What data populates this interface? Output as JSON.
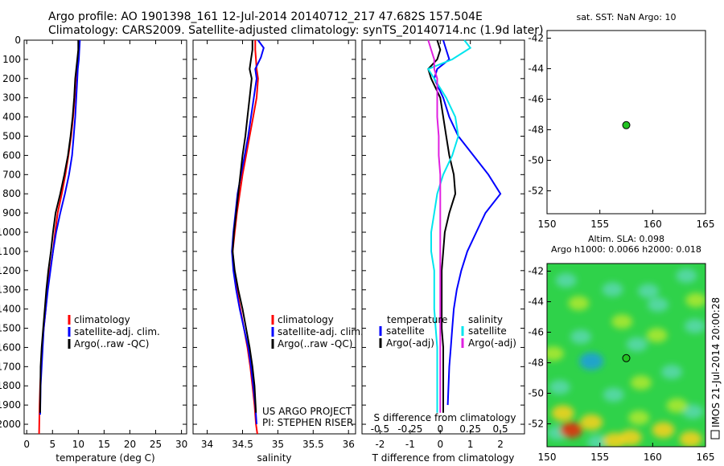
{
  "header": {
    "line1": "Argo profile: AO 1901398_161 12-Jul-2014 20140712_217 47.682S 157.504E",
    "line2": "Climatology: CARS2009. Satellite-adjusted climatology: synTS_20140714.nc (1.9d later)"
  },
  "side_label": "IMOS 21-Jul-2014 20:00:28",
  "colors": {
    "climatology": "#ff0000",
    "satellite": "#0000ff",
    "argo": "#000000",
    "sal_satellite": "#00e5ee",
    "sal_argo": "#e020e0",
    "dot": "#22c322",
    "axis": "#000000"
  },
  "chart_data": [
    {
      "id": "temperature",
      "type": "line",
      "xlabel": "temperature (deg C)",
      "xlim": [
        -0.5,
        31
      ],
      "ylim": [
        0,
        2050
      ],
      "xticks": [
        0,
        5,
        10,
        15,
        20,
        25,
        30
      ],
      "yticks": [
        0,
        100,
        200,
        300,
        400,
        500,
        600,
        700,
        800,
        900,
        1000,
        1100,
        1200,
        1300,
        1400,
        1500,
        1600,
        1700,
        1800,
        1900,
        2000
      ],
      "legend": [
        "climatology",
        "satellite-adj. clim.",
        "Argo(..raw -QC)"
      ],
      "series": [
        {
          "name": "climatology",
          "color": "#ff0000",
          "x": [
            10.1,
            10.1,
            9.9,
            9.7,
            9.5,
            9.3,
            9.0,
            8.6,
            8.1,
            7.5,
            6.8,
            6.0,
            5.5,
            5.1,
            4.5,
            4.0,
            3.7,
            3.3,
            3.0,
            2.8,
            2.6,
            2.5,
            2.4
          ],
          "y": [
            0,
            50,
            100,
            150,
            200,
            300,
            400,
            500,
            600,
            700,
            800,
            900,
            1000,
            1100,
            1200,
            1300,
            1400,
            1500,
            1600,
            1700,
            1800,
            1900,
            2050
          ]
        },
        {
          "name": "satellite-adj. clim.",
          "color": "#0000ff",
          "x": [
            10.3,
            10.2,
            10.1,
            9.9,
            9.8,
            9.6,
            9.4,
            9.1,
            8.8,
            8.2,
            7.4,
            6.5,
            5.7,
            5.1,
            4.6,
            4.1,
            3.7,
            3.3,
            3.1,
            2.9,
            2.7,
            2.6
          ],
          "y": [
            0,
            50,
            100,
            150,
            200,
            300,
            400,
            500,
            600,
            700,
            800,
            900,
            1000,
            1100,
            1200,
            1300,
            1400,
            1500,
            1600,
            1700,
            1800,
            1950
          ]
        },
        {
          "name": "Argo(..raw -QC)",
          "color": "#000000",
          "x": [
            10.0,
            10.0,
            9.8,
            9.6,
            9.4,
            9.2,
            8.9,
            8.5,
            8.0,
            7.3,
            6.5,
            5.6,
            5.1,
            4.7,
            4.2,
            3.8,
            3.5,
            3.2,
            2.9,
            2.7,
            2.6
          ],
          "y": [
            0,
            50,
            100,
            150,
            200,
            300,
            400,
            500,
            600,
            700,
            800,
            900,
            1000,
            1100,
            1200,
            1300,
            1400,
            1500,
            1600,
            1700,
            1940
          ]
        }
      ]
    },
    {
      "id": "salinity",
      "type": "line",
      "xlabel": "salinity",
      "xlim": [
        33.8,
        36.1
      ],
      "ylim": [
        0,
        2050
      ],
      "xticks": [
        34,
        34.5,
        35,
        35.5,
        36
      ],
      "xtick_labels": [
        "34",
        "34.5",
        "35",
        "35.5",
        "36"
      ],
      "legend": [
        "climatology",
        "satellite-adj. clim.",
        "Argo(..raw -QC)"
      ],
      "annotation": [
        "US ARGO PROJECT",
        "PI: STEPHEN RISER"
      ],
      "series": [
        {
          "name": "climatology",
          "color": "#ff0000",
          "x": [
            34.68,
            34.68,
            34.69,
            34.7,
            34.72,
            34.7,
            34.65,
            34.6,
            34.55,
            34.5,
            34.46,
            34.42,
            34.39,
            34.36,
            34.38,
            34.42,
            34.47,
            34.52,
            34.57,
            34.61,
            34.64,
            34.67,
            34.69,
            34.71
          ],
          "y": [
            0,
            50,
            100,
            150,
            200,
            300,
            400,
            500,
            600,
            700,
            800,
            900,
            1000,
            1100,
            1200,
            1300,
            1400,
            1500,
            1600,
            1700,
            1800,
            1900,
            2000,
            2050
          ]
        },
        {
          "name": "satellite-adj. clim.",
          "color": "#0000ff",
          "x": [
            34.72,
            34.8,
            34.76,
            34.68,
            34.7,
            34.66,
            34.62,
            34.58,
            34.53,
            34.48,
            34.43,
            34.4,
            34.37,
            34.35,
            34.37,
            34.41,
            34.46,
            34.52,
            34.58,
            34.62,
            34.65,
            34.68,
            34.7
          ],
          "y": [
            0,
            40,
            90,
            150,
            200,
            300,
            400,
            500,
            600,
            700,
            800,
            900,
            1000,
            1100,
            1200,
            1300,
            1400,
            1500,
            1600,
            1700,
            1800,
            1900,
            2000
          ]
        },
        {
          "name": "Argo(..raw -QC)",
          "color": "#000000",
          "x": [
            34.64,
            34.64,
            34.62,
            34.6,
            34.63,
            34.6,
            34.57,
            34.54,
            34.5,
            34.47,
            34.44,
            34.41,
            34.38,
            34.36,
            34.39,
            34.44,
            34.5,
            34.55,
            34.6,
            34.64,
            34.67,
            34.69
          ],
          "y": [
            0,
            50,
            100,
            150,
            200,
            300,
            400,
            500,
            600,
            700,
            800,
            900,
            1000,
            1100,
            1200,
            1300,
            1400,
            1500,
            1600,
            1700,
            1800,
            1940
          ]
        }
      ]
    },
    {
      "id": "difference",
      "type": "line",
      "xlabel": "T difference from climatology",
      "xlabel_top": "S difference from climatology",
      "xlim": [
        -2.6,
        2.8
      ],
      "ylim": [
        0,
        2050
      ],
      "xticks": [
        -2,
        -1,
        0,
        1,
        2
      ],
      "s_ticks": [
        -0.5,
        -0.25,
        0,
        0.25,
        0.5
      ],
      "s_tick_labels": [
        "-0.5",
        "-0.25",
        "0",
        "0.25",
        "0.5"
      ],
      "s_scale": 4,
      "legend_headers": [
        "temperature",
        "salinity"
      ],
      "legend": [
        "satellite",
        "Argo(-adj)",
        "satellite",
        "Argo(-adj)"
      ],
      "series": [
        {
          "name": "T satellite",
          "color": "#0000ff",
          "x": [
            0.1,
            0.2,
            0.3,
            -0.1,
            -0.2,
            0.1,
            0.3,
            0.6,
            1.1,
            1.6,
            2.0,
            1.5,
            1.2,
            0.9,
            0.7,
            0.55,
            0.45,
            0.4,
            0.35,
            0.3,
            0.25
          ],
          "y": [
            0,
            50,
            100,
            150,
            200,
            300,
            400,
            500,
            600,
            700,
            800,
            900,
            1000,
            1100,
            1200,
            1300,
            1400,
            1500,
            1600,
            1700,
            1900
          ]
        },
        {
          "name": "T Argo(-adj)",
          "color": "#000000",
          "x": [
            -0.1,
            0.0,
            -0.1,
            -0.4,
            -0.3,
            0.0,
            0.1,
            0.2,
            0.3,
            0.45,
            0.5,
            0.3,
            0.15,
            0.1,
            0.05,
            0.05,
            0.05,
            0.05,
            0.1,
            0.1,
            0.1
          ],
          "y": [
            0,
            50,
            100,
            150,
            200,
            300,
            400,
            500,
            600,
            700,
            800,
            900,
            1000,
            1100,
            1200,
            1300,
            1400,
            1500,
            1600,
            1700,
            1940
          ]
        },
        {
          "name": "S satellite",
          "color": "#00e5ee",
          "x": [
            0.8,
            1.0,
            0.4,
            -0.4,
            -0.2,
            0.2,
            0.5,
            0.6,
            0.4,
            0.1,
            -0.1,
            -0.2,
            -0.3,
            -0.3,
            -0.2,
            -0.2,
            -0.2,
            -0.15,
            -0.1,
            -0.1,
            -0.1
          ],
          "y": [
            0,
            40,
            100,
            150,
            200,
            300,
            400,
            500,
            600,
            700,
            800,
            900,
            1000,
            1100,
            1200,
            1300,
            1400,
            1500,
            1600,
            1700,
            1940
          ]
        },
        {
          "name": "S Argo(-adj)",
          "color": "#e020e0",
          "x": [
            -0.4,
            -0.3,
            -0.2,
            -0.2,
            -0.1,
            -0.1,
            -0.1,
            -0.05,
            -0.05,
            0.0,
            0.0,
            0.0,
            0.0,
            0.0,
            0.0,
            0.0,
            0.0,
            0.0,
            0.0,
            0.0,
            0.0
          ],
          "y": [
            0,
            50,
            100,
            150,
            200,
            300,
            400,
            500,
            600,
            700,
            800,
            900,
            1000,
            1100,
            1200,
            1300,
            1400,
            1500,
            1600,
            1700,
            1940
          ]
        }
      ]
    },
    {
      "id": "map-sst",
      "type": "scatter",
      "title": "sat. SST: NaN Argo: 10",
      "xlim": [
        150,
        165
      ],
      "ylim": [
        -53.5,
        -41.5
      ],
      "xticks": [
        150,
        155,
        160,
        165
      ],
      "yticks": [
        -42,
        -44,
        -46,
        -48,
        -50,
        -52
      ],
      "points": [
        {
          "x": 157.5,
          "y": -47.7
        }
      ]
    },
    {
      "id": "map-sla",
      "type": "heatmap",
      "title_lines": [
        "Altim. SLA: 0.098",
        "Argo h1000: 0.0066 h2000: 0.018"
      ],
      "xlim": [
        150,
        165
      ],
      "ylim": [
        -53.5,
        -41.5
      ],
      "xticks": [
        150,
        155,
        160,
        165
      ],
      "yticks": [
        -42,
        -44,
        -46,
        -48,
        -50,
        -52
      ],
      "points": [
        {
          "x": 157.5,
          "y": -47.7
        }
      ],
      "features": [
        {
          "x": 151.8,
          "y": -42.6,
          "value": 0.8
        },
        {
          "x": 156.2,
          "y": -43.2,
          "value": 0.7
        },
        {
          "x": 160.5,
          "y": -44.2,
          "value": 0.8
        },
        {
          "x": 163.2,
          "y": -42.3,
          "value": 0.75
        },
        {
          "x": 153.2,
          "y": -46.3,
          "value": 0.75
        },
        {
          "x": 158.5,
          "y": -46.8,
          "value": 0.7
        },
        {
          "x": 161.8,
          "y": -48.6,
          "value": 0.8
        },
        {
          "x": 151.2,
          "y": -49.6,
          "value": 0.75
        },
        {
          "x": 156.3,
          "y": -50.1,
          "value": 0.7
        },
        {
          "x": 163.8,
          "y": -51.2,
          "value": 0.8
        },
        {
          "x": 158.7,
          "y": -51.6,
          "value": 1.0
        },
        {
          "x": 151.0,
          "y": -52.6,
          "value": 0.85
        },
        {
          "x": 154.8,
          "y": -53.2,
          "value": 0.8
        },
        {
          "x": 154.2,
          "y": -47.9,
          "value": 0.55
        },
        {
          "x": 164.0,
          "y": -45.6,
          "value": 0.6
        },
        {
          "x": 159.6,
          "y": -43.3,
          "value": 0.6
        },
        {
          "x": 151.5,
          "y": -51.3,
          "value": 1.45
        },
        {
          "x": 152.3,
          "y": -52.4,
          "value": 1.95
        },
        {
          "x": 154.2,
          "y": -51.9,
          "value": 1.55
        },
        {
          "x": 156.4,
          "y": -53.1,
          "value": 1.6
        },
        {
          "x": 157.9,
          "y": -52.9,
          "value": 1.45
        },
        {
          "x": 161.0,
          "y": -52.4,
          "value": 1.4
        },
        {
          "x": 163.6,
          "y": -53.0,
          "value": 1.45
        },
        {
          "x": 162.3,
          "y": -50.8,
          "value": 1.35
        },
        {
          "x": 153.0,
          "y": -44.1,
          "value": 1.35
        },
        {
          "x": 157.1,
          "y": -45.3,
          "value": 1.35
        },
        {
          "x": 160.4,
          "y": -46.2,
          "value": 1.3
        },
        {
          "x": 164.1,
          "y": -43.9,
          "value": 1.35
        },
        {
          "x": 150.6,
          "y": -47.4,
          "value": 1.35
        },
        {
          "x": 158.9,
          "y": -49.3,
          "value": 1.3
        }
      ]
    }
  ]
}
